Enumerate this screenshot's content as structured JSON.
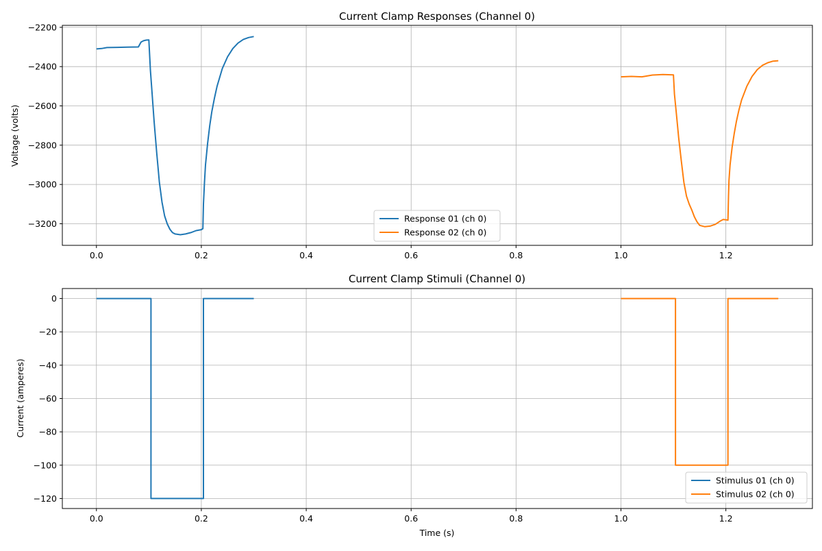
{
  "chart_data": [
    {
      "type": "line",
      "title": "Current Clamp Responses (Channel 0)",
      "xlabel": "",
      "ylabel": "Voltage (volts)",
      "xlim": [
        -0.065,
        1.365
      ],
      "ylim": [
        -3310,
        -2190
      ],
      "xticks": [
        0.0,
        0.2,
        0.4,
        0.6,
        0.8,
        1.0,
        1.2
      ],
      "xtick_labels": [
        "0.0",
        "0.2",
        "0.4",
        "0.6",
        "0.8",
        "1.0",
        "1.2"
      ],
      "yticks": [
        -3200,
        -3000,
        -2800,
        -2600,
        -2400,
        -2200
      ],
      "ytick_labels": [
        "−3200",
        "−3000",
        "−2800",
        "−2600",
        "−2400",
        "−2200"
      ],
      "grid": true,
      "legend_position": "bottom-center",
      "series": [
        {
          "name": "Response 01 (ch 0)",
          "color": "#1f77b4",
          "x": [
            0.0,
            0.01,
            0.02,
            0.04,
            0.06,
            0.08,
            0.085,
            0.09,
            0.095,
            0.1,
            0.103,
            0.106,
            0.11,
            0.115,
            0.12,
            0.125,
            0.13,
            0.135,
            0.14,
            0.145,
            0.15,
            0.16,
            0.17,
            0.18,
            0.19,
            0.2,
            0.203,
            0.204,
            0.206,
            0.208,
            0.212,
            0.216,
            0.22,
            0.225,
            0.23,
            0.24,
            0.25,
            0.26,
            0.27,
            0.28,
            0.29,
            0.3
          ],
          "y": [
            -2310,
            -2308,
            -2303,
            -2302,
            -2301,
            -2300,
            -2275,
            -2268,
            -2265,
            -2264,
            -2420,
            -2530,
            -2680,
            -2840,
            -2990,
            -3090,
            -3160,
            -3200,
            -3228,
            -3245,
            -3252,
            -3256,
            -3252,
            -3245,
            -3235,
            -3230,
            -3225,
            -3100,
            -2990,
            -2900,
            -2790,
            -2700,
            -2630,
            -2560,
            -2500,
            -2410,
            -2350,
            -2308,
            -2280,
            -2262,
            -2252,
            -2247
          ]
        },
        {
          "name": "Response 02 (ch 0)",
          "color": "#ff7f0e",
          "x": [
            1.0,
            1.02,
            1.04,
            1.06,
            1.08,
            1.1,
            1.102,
            1.106,
            1.11,
            1.115,
            1.12,
            1.125,
            1.13,
            1.135,
            1.14,
            1.145,
            1.15,
            1.16,
            1.17,
            1.18,
            1.19,
            1.195,
            1.2,
            1.204,
            1.205,
            1.206,
            1.208,
            1.212,
            1.216,
            1.22,
            1.225,
            1.23,
            1.24,
            1.25,
            1.26,
            1.27,
            1.28,
            1.29,
            1.3
          ],
          "y": [
            -2452,
            -2450,
            -2452,
            -2443,
            -2440,
            -2442,
            -2540,
            -2650,
            -2760,
            -2880,
            -2990,
            -3060,
            -3100,
            -3130,
            -3165,
            -3190,
            -3208,
            -3215,
            -3212,
            -3203,
            -3185,
            -3178,
            -3180,
            -3182,
            -3060,
            -2980,
            -2900,
            -2810,
            -2740,
            -2680,
            -2620,
            -2570,
            -2500,
            -2450,
            -2415,
            -2393,
            -2380,
            -2372,
            -2370
          ]
        }
      ]
    },
    {
      "type": "line",
      "title": "Current Clamp Stimuli (Channel 0)",
      "xlabel": "Time (s)",
      "ylabel": "Current (amperes)",
      "xlim": [
        -0.065,
        1.365
      ],
      "ylim": [
        -126,
        6
      ],
      "xticks": [
        0.0,
        0.2,
        0.4,
        0.6,
        0.8,
        1.0,
        1.2
      ],
      "xtick_labels": [
        "0.0",
        "0.2",
        "0.4",
        "0.6",
        "0.8",
        "1.0",
        "1.2"
      ],
      "yticks": [
        -120,
        -100,
        -80,
        -60,
        -40,
        -20,
        0
      ],
      "ytick_labels": [
        "−120",
        "−100",
        "−80",
        "−60",
        "−40",
        "−20",
        "0"
      ],
      "grid": true,
      "legend_position": "bottom-right",
      "series": [
        {
          "name": "Stimulus 01 (ch 0)",
          "color": "#1f77b4",
          "x": [
            0.0,
            0.104,
            0.104,
            0.204,
            0.204,
            0.3
          ],
          "y": [
            0,
            0,
            -120,
            -120,
            0,
            0
          ]
        },
        {
          "name": "Stimulus 02 (ch 0)",
          "color": "#ff7f0e",
          "x": [
            1.0,
            1.104,
            1.104,
            1.204,
            1.204,
            1.3
          ],
          "y": [
            0,
            0,
            -100,
            -100,
            0,
            0
          ]
        }
      ]
    }
  ]
}
